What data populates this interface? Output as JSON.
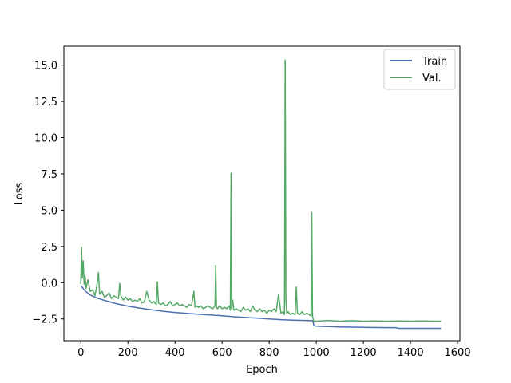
{
  "chart_data": {
    "type": "line",
    "xlabel": "Epoch",
    "ylabel": "Loss",
    "xlim": [
      -72,
      1610
    ],
    "ylim": [
      -4.0,
      16.3
    ],
    "xticks": [
      0,
      200,
      400,
      600,
      800,
      1000,
      1200,
      1400,
      1600
    ],
    "xtick_labels": [
      "0",
      "200",
      "400",
      "600",
      "800",
      "1000",
      "1200",
      "1400",
      "1600"
    ],
    "yticks": [
      -2.5,
      0.0,
      2.5,
      5.0,
      7.5,
      10.0,
      12.5,
      15.0
    ],
    "ytick_labels": [
      "−2.5",
      "0.0",
      "2.5",
      "5.0",
      "7.5",
      "10.0",
      "12.5",
      "15.0"
    ],
    "grid": false,
    "legend_position": "top-right",
    "series": [
      {
        "name": "Train",
        "color": "#4c72b0",
        "x": [
          0,
          10,
          20,
          40,
          60,
          80,
          100,
          150,
          200,
          250,
          300,
          350,
          400,
          450,
          500,
          550,
          600,
          650,
          700,
          750,
          800,
          850,
          900,
          950,
          985,
          990,
          1000,
          1100,
          1200,
          1300,
          1340,
          1345,
          1400,
          1500,
          1530
        ],
        "values": [
          -0.2,
          -0.4,
          -0.6,
          -0.85,
          -1.0,
          -1.12,
          -1.22,
          -1.45,
          -1.62,
          -1.75,
          -1.87,
          -1.97,
          -2.05,
          -2.12,
          -2.18,
          -2.23,
          -2.28,
          -2.35,
          -2.4,
          -2.45,
          -2.5,
          -2.55,
          -2.58,
          -2.6,
          -2.62,
          -2.95,
          -3.0,
          -3.05,
          -3.08,
          -3.1,
          -3.1,
          -3.15,
          -3.15,
          -3.15,
          -3.15
        ]
      },
      {
        "name": "Val.",
        "color": "#55a868",
        "x": [
          0,
          3,
          6,
          10,
          14,
          18,
          22,
          30,
          40,
          50,
          60,
          70,
          75,
          80,
          90,
          100,
          110,
          120,
          130,
          140,
          150,
          160,
          165,
          170,
          180,
          190,
          200,
          210,
          220,
          230,
          240,
          250,
          260,
          270,
          280,
          290,
          300,
          310,
          320,
          325,
          330,
          340,
          350,
          360,
          370,
          380,
          390,
          400,
          410,
          420,
          430,
          440,
          450,
          460,
          470,
          480,
          485,
          490,
          500,
          510,
          520,
          530,
          540,
          550,
          560,
          570,
          573,
          576,
          580,
          590,
          600,
          610,
          620,
          630,
          635,
          638,
          641,
          645,
          650,
          660,
          670,
          680,
          690,
          700,
          710,
          720,
          730,
          740,
          750,
          760,
          770,
          780,
          790,
          800,
          810,
          820,
          830,
          840,
          850,
          860,
          865,
          868,
          871,
          875,
          880,
          890,
          900,
          910,
          915,
          920,
          930,
          940,
          950,
          960,
          970,
          978,
          981,
          984,
          988,
          992,
          1000,
          1050,
          1100,
          1150,
          1200,
          1250,
          1300,
          1350,
          1400,
          1450,
          1500,
          1530
        ],
        "values": [
          -0.1,
          2.45,
          0.3,
          1.5,
          -0.1,
          0.5,
          -0.4,
          0.2,
          -0.6,
          -0.5,
          -0.9,
          0.0,
          0.7,
          -0.8,
          -0.6,
          -1.0,
          -0.9,
          -0.7,
          -1.1,
          -0.9,
          -1.0,
          -1.1,
          -0.05,
          -0.9,
          -1.2,
          -1.0,
          -1.2,
          -1.1,
          -1.3,
          -1.2,
          -1.3,
          -1.1,
          -1.4,
          -1.3,
          -0.6,
          -1.2,
          -1.4,
          -1.3,
          -1.5,
          0.05,
          -1.4,
          -1.5,
          -1.4,
          -1.6,
          -1.5,
          -1.3,
          -1.6,
          -1.5,
          -1.4,
          -1.6,
          -1.5,
          -1.6,
          -1.7,
          -1.5,
          -1.6,
          -0.6,
          -1.7,
          -1.6,
          -1.7,
          -1.6,
          -1.8,
          -1.7,
          -1.6,
          -1.7,
          -1.8,
          -1.6,
          1.2,
          -1.7,
          -1.8,
          -1.6,
          -1.8,
          -1.7,
          -1.8,
          -1.6,
          -1.9,
          7.55,
          -1.8,
          -1.2,
          -1.9,
          -1.8,
          -1.9,
          -2.0,
          -1.7,
          -1.9,
          -1.8,
          -2.0,
          -1.6,
          -1.9,
          -2.0,
          -1.8,
          -2.0,
          -1.9,
          -2.1,
          -1.9,
          -2.0,
          -1.8,
          -2.0,
          -0.8,
          -2.1,
          -2.0,
          -2.2,
          15.35,
          -1.3,
          -2.1,
          -2.0,
          -2.2,
          -2.1,
          -2.2,
          -0.3,
          -2.1,
          -2.2,
          -2.0,
          -2.2,
          -2.1,
          -2.2,
          -2.3,
          4.85,
          -2.3,
          -2.6,
          -2.65,
          -2.65,
          -2.6,
          -2.65,
          -2.62,
          -2.65,
          -2.64,
          -2.65,
          -2.64,
          -2.65,
          -2.64,
          -2.65,
          -2.65
        ]
      }
    ]
  }
}
